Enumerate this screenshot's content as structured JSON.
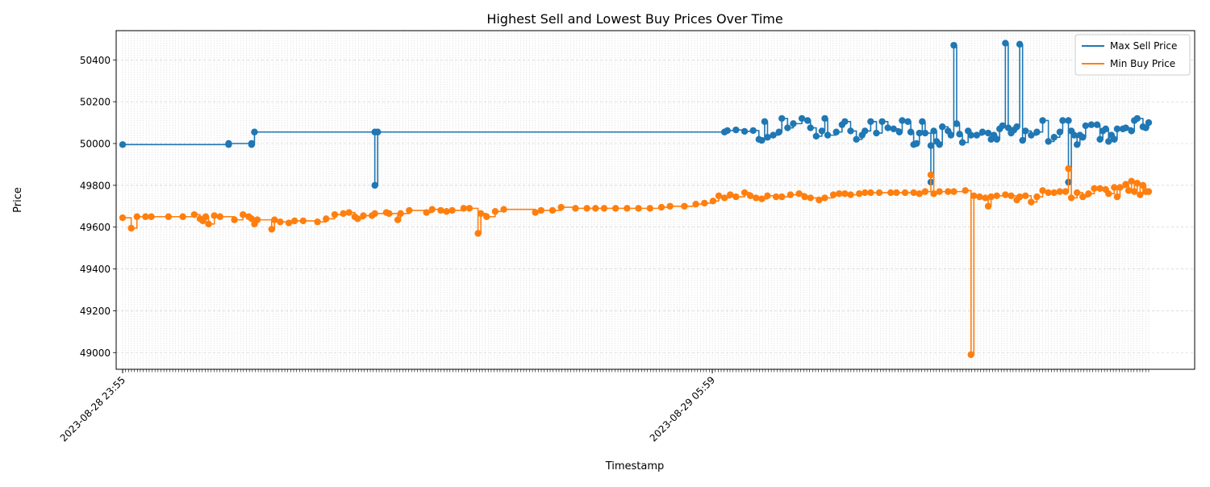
{
  "chart_data": {
    "type": "line",
    "title": "Highest Sell and Lowest Buy Prices Over Time",
    "xlabel": "Timestamp",
    "ylabel": "Price",
    "ylim": [
      48920,
      50540
    ],
    "yticks": [
      49000,
      49200,
      49400,
      49600,
      49800,
      50000,
      50200,
      50400
    ],
    "x_labeled_ticks": [
      "2023-08-28 23:55",
      "2023-08-29 05:59"
    ],
    "x_labeled_tick_index": [
      0,
      200
    ],
    "num_samples": 349,
    "grid": true,
    "legend": "top-right",
    "colors": {
      "max_sell": "#1f77b4",
      "min_buy": "#ff7f0e"
    },
    "series": [
      {
        "name": "Max Sell Price",
        "key": "max_sell",
        "points": [
          [
            0,
            49995
          ],
          [
            37,
            49995
          ],
          [
            37,
            50000
          ],
          [
            45,
            50000
          ],
          [
            45,
            49995
          ],
          [
            46,
            50055
          ],
          [
            88,
            50055
          ],
          [
            88,
            49800
          ],
          [
            89,
            50055
          ],
          [
            210,
            50055
          ],
          [
            211,
            50062
          ],
          [
            214,
            50065
          ],
          [
            217,
            50058
          ],
          [
            220,
            50062
          ],
          [
            222,
            50020
          ],
          [
            223,
            50015
          ],
          [
            224,
            50105
          ],
          [
            225,
            50030
          ],
          [
            227,
            50040
          ],
          [
            229,
            50055
          ],
          [
            230,
            50120
          ],
          [
            232,
            50075
          ],
          [
            234,
            50095
          ],
          [
            237,
            50120
          ],
          [
            239,
            50110
          ],
          [
            240,
            50075
          ],
          [
            242,
            50035
          ],
          [
            244,
            50060
          ],
          [
            245,
            50120
          ],
          [
            246,
            50040
          ],
          [
            249,
            50055
          ],
          [
            251,
            50090
          ],
          [
            252,
            50105
          ],
          [
            254,
            50060
          ],
          [
            256,
            50020
          ],
          [
            258,
            50040
          ],
          [
            259,
            50060
          ],
          [
            261,
            50105
          ],
          [
            263,
            50050
          ],
          [
            265,
            50105
          ],
          [
            267,
            50075
          ],
          [
            269,
            50070
          ],
          [
            271,
            50055
          ],
          [
            272,
            50110
          ],
          [
            274,
            50105
          ],
          [
            275,
            50055
          ],
          [
            276,
            49995
          ],
          [
            277,
            50000
          ],
          [
            278,
            50050
          ],
          [
            279,
            50105
          ],
          [
            280,
            50050
          ],
          [
            282,
            49990
          ],
          [
            282,
            49815
          ],
          [
            283,
            50060
          ],
          [
            284,
            50010
          ],
          [
            285,
            49995
          ],
          [
            286,
            50080
          ],
          [
            288,
            50060
          ],
          [
            289,
            50040
          ],
          [
            290,
            50470
          ],
          [
            291,
            50095
          ],
          [
            292,
            50045
          ],
          [
            293,
            50005
          ],
          [
            295,
            50060
          ],
          [
            296,
            50040
          ],
          [
            298,
            50040
          ],
          [
            300,
            50055
          ],
          [
            302,
            50050
          ],
          [
            303,
            50020
          ],
          [
            304,
            50040
          ],
          [
            305,
            50020
          ],
          [
            306,
            50070
          ],
          [
            307,
            50085
          ],
          [
            308,
            50480
          ],
          [
            309,
            50075
          ],
          [
            310,
            50050
          ],
          [
            311,
            50065
          ],
          [
            312,
            50080
          ],
          [
            313,
            50475
          ],
          [
            314,
            50015
          ],
          [
            315,
            50060
          ],
          [
            317,
            50040
          ],
          [
            319,
            50055
          ],
          [
            321,
            50110
          ],
          [
            323,
            50010
          ],
          [
            325,
            50030
          ],
          [
            327,
            50055
          ],
          [
            328,
            50110
          ],
          [
            330,
            50110
          ],
          [
            330,
            49815
          ],
          [
            331,
            50060
          ],
          [
            332,
            50040
          ],
          [
            333,
            49995
          ],
          [
            334,
            50040
          ],
          [
            335,
            50030
          ],
          [
            336,
            50085
          ],
          [
            338,
            50090
          ],
          [
            340,
            50090
          ],
          [
            341,
            50020
          ],
          [
            342,
            50060
          ],
          [
            343,
            50070
          ],
          [
            344,
            50010
          ],
          [
            345,
            50040
          ],
          [
            346,
            50020
          ],
          [
            347,
            50070
          ],
          [
            349,
            50070
          ],
          [
            350,
            50075
          ],
          [
            352,
            50060
          ],
          [
            353,
            50110
          ],
          [
            354,
            50120
          ],
          [
            356,
            50080
          ],
          [
            357,
            50075
          ],
          [
            358,
            50100
          ]
        ]
      },
      {
        "name": "Min Buy Price",
        "key": "min_buy",
        "points": [
          [
            0,
            49645
          ],
          [
            3,
            49595
          ],
          [
            5,
            49650
          ],
          [
            8,
            49650
          ],
          [
            10,
            49650
          ],
          [
            16,
            49650
          ],
          [
            21,
            49650
          ],
          [
            25,
            49660
          ],
          [
            27,
            49640
          ],
          [
            28,
            49630
          ],
          [
            29,
            49650
          ],
          [
            30,
            49615
          ],
          [
            32,
            49655
          ],
          [
            34,
            49650
          ],
          [
            39,
            49635
          ],
          [
            42,
            49660
          ],
          [
            44,
            49650
          ],
          [
            45,
            49640
          ],
          [
            46,
            49615
          ],
          [
            47,
            49635
          ],
          [
            52,
            49590
          ],
          [
            53,
            49635
          ],
          [
            55,
            49625
          ],
          [
            58,
            49620
          ],
          [
            60,
            49630
          ],
          [
            63,
            49630
          ],
          [
            68,
            49625
          ],
          [
            71,
            49640
          ],
          [
            74,
            49660
          ],
          [
            77,
            49665
          ],
          [
            79,
            49670
          ],
          [
            81,
            49650
          ],
          [
            82,
            49640
          ],
          [
            84,
            49655
          ],
          [
            87,
            49655
          ],
          [
            88,
            49665
          ],
          [
            92,
            49670
          ],
          [
            93,
            49665
          ],
          [
            96,
            49635
          ],
          [
            97,
            49665
          ],
          [
            100,
            49680
          ],
          [
            106,
            49670
          ],
          [
            108,
            49685
          ],
          [
            111,
            49680
          ],
          [
            113,
            49675
          ],
          [
            115,
            49680
          ],
          [
            119,
            49690
          ],
          [
            121,
            49690
          ],
          [
            124,
            49570
          ],
          [
            125,
            49665
          ],
          [
            127,
            49650
          ],
          [
            130,
            49675
          ],
          [
            133,
            49685
          ],
          [
            144,
            49670
          ],
          [
            146,
            49680
          ],
          [
            150,
            49680
          ],
          [
            153,
            49695
          ],
          [
            158,
            49690
          ],
          [
            162,
            49690
          ],
          [
            165,
            49690
          ],
          [
            168,
            49690
          ],
          [
            172,
            49690
          ],
          [
            176,
            49690
          ],
          [
            180,
            49690
          ],
          [
            184,
            49690
          ],
          [
            188,
            49695
          ],
          [
            191,
            49700
          ],
          [
            196,
            49700
          ],
          [
            200,
            49710
          ],
          [
            203,
            49715
          ],
          [
            206,
            49725
          ],
          [
            208,
            49750
          ],
          [
            210,
            49740
          ],
          [
            212,
            49755
          ],
          [
            214,
            49745
          ],
          [
            217,
            49765
          ],
          [
            219,
            49750
          ],
          [
            221,
            49740
          ],
          [
            223,
            49735
          ],
          [
            225,
            49750
          ],
          [
            228,
            49745
          ],
          [
            230,
            49745
          ],
          [
            233,
            49755
          ],
          [
            236,
            49760
          ],
          [
            238,
            49745
          ],
          [
            240,
            49740
          ],
          [
            243,
            49730
          ],
          [
            245,
            49740
          ],
          [
            248,
            49755
          ],
          [
            250,
            49760
          ],
          [
            252,
            49760
          ],
          [
            254,
            49755
          ],
          [
            257,
            49760
          ],
          [
            259,
            49765
          ],
          [
            261,
            49765
          ],
          [
            264,
            49765
          ],
          [
            268,
            49765
          ],
          [
            270,
            49765
          ],
          [
            273,
            49765
          ],
          [
            276,
            49765
          ],
          [
            278,
            49760
          ],
          [
            280,
            49770
          ],
          [
            282,
            49850
          ],
          [
            283,
            49760
          ],
          [
            285,
            49770
          ],
          [
            288,
            49770
          ],
          [
            290,
            49770
          ],
          [
            294,
            49775
          ],
          [
            296,
            48990
          ],
          [
            297,
            49750
          ],
          [
            299,
            49745
          ],
          [
            301,
            49740
          ],
          [
            302,
            49700
          ],
          [
            303,
            49745
          ],
          [
            305,
            49750
          ],
          [
            308,
            49755
          ],
          [
            310,
            49750
          ],
          [
            312,
            49730
          ],
          [
            313,
            49745
          ],
          [
            315,
            49750
          ],
          [
            317,
            49720
          ],
          [
            319,
            49745
          ],
          [
            321,
            49775
          ],
          [
            323,
            49765
          ],
          [
            325,
            49765
          ],
          [
            327,
            49770
          ],
          [
            329,
            49770
          ],
          [
            330,
            49880
          ],
          [
            331,
            49740
          ],
          [
            333,
            49765
          ],
          [
            335,
            49745
          ],
          [
            337,
            49760
          ],
          [
            339,
            49785
          ],
          [
            341,
            49785
          ],
          [
            343,
            49780
          ],
          [
            344,
            49760
          ],
          [
            346,
            49790
          ],
          [
            347,
            49745
          ],
          [
            348,
            49790
          ],
          [
            350,
            49805
          ],
          [
            351,
            49775
          ],
          [
            352,
            49820
          ],
          [
            353,
            49770
          ],
          [
            354,
            49810
          ],
          [
            355,
            49755
          ],
          [
            356,
            49800
          ],
          [
            357,
            49770
          ],
          [
            358,
            49770
          ]
        ]
      }
    ]
  }
}
